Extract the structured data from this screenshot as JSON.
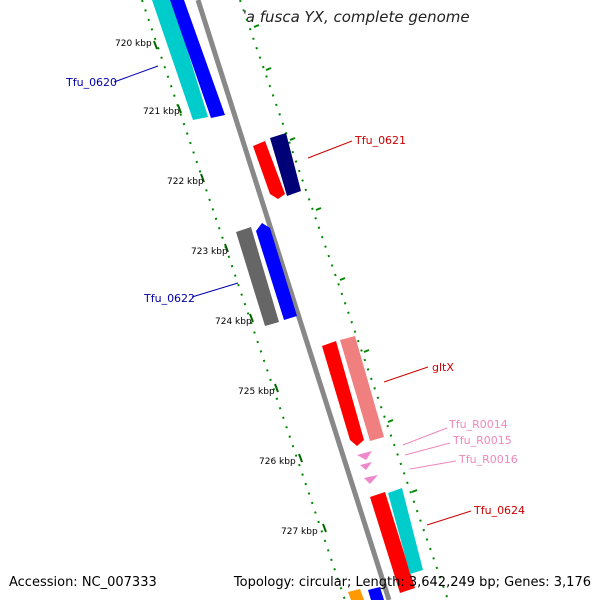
{
  "title": "Thermobifida fusca YX, complete genome",
  "footer": {
    "accession": "Accession: NC_007333",
    "summary": "Topology: circular; Length: 3,642,249 bp; Genes: 3,176"
  },
  "scale_labels": [
    "720 kbp",
    "721 kbp",
    "722 kbp",
    "723 kbp",
    "724 kbp",
    "725 kbp",
    "726 kbp",
    "727 kbp"
  ],
  "features": [
    {
      "label": "Tfu_0620",
      "color": "#0000aa"
    },
    {
      "label": "Tfu_0621",
      "color": "#cc0000"
    },
    {
      "label": "Tfu_0622",
      "color": "#0000aa"
    },
    {
      "label": "gltX",
      "color": "#cc0000"
    },
    {
      "label": "Tfu_R0014",
      "color": "#ee88bb"
    },
    {
      "label": "Tfu_R0015",
      "color": "#ee88bb"
    },
    {
      "label": "Tfu_R0016",
      "color": "#ee88bb"
    },
    {
      "label": "Tfu_0624",
      "color": "#cc0000"
    }
  ],
  "colors": {
    "backbone": "#888888",
    "dotted_ring": "#008800",
    "tick": "#006600",
    "red": "#ff0000",
    "dark_navy": "#000077",
    "blue": "#0000ff",
    "cyan": "#00cccc",
    "gray": "#666666",
    "salmon": "#f08080",
    "pink": "#ee88cc",
    "orange": "#ff9900"
  }
}
